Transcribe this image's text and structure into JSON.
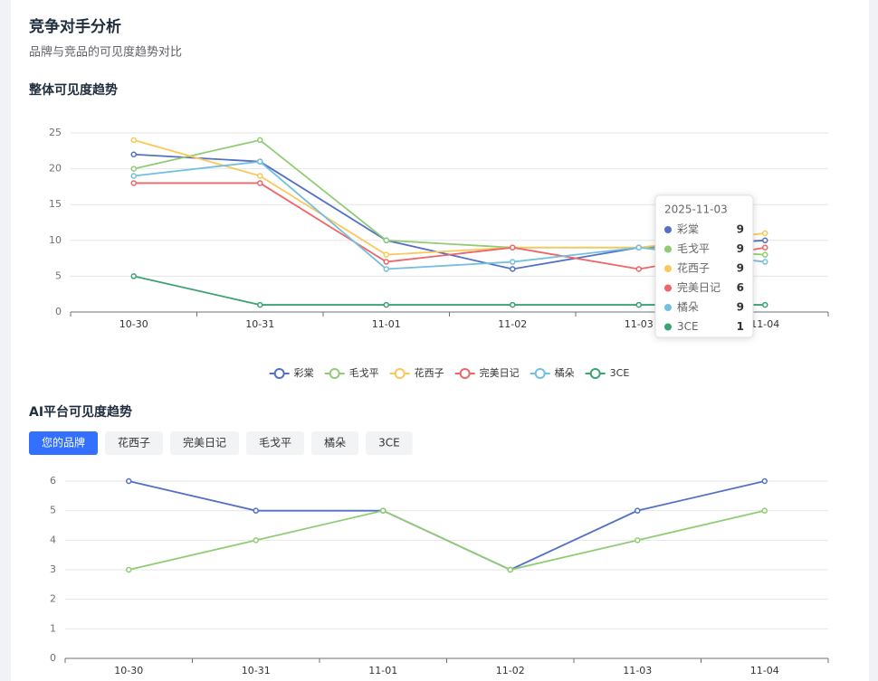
{
  "header": {
    "title": "竞争对手分析",
    "subtitle": "品牌与竞品的可见度趋势对比"
  },
  "chart_data": [
    {
      "type": "line",
      "title": "整体可见度趋势",
      "categories": [
        "10-30",
        "10-31",
        "11-01",
        "11-02",
        "11-03",
        "11-04"
      ],
      "series": [
        {
          "name": "彩棠",
          "color": "#5470c6",
          "values": [
            22,
            21,
            10,
            6,
            9,
            10
          ]
        },
        {
          "name": "毛戈平",
          "color": "#91cc75",
          "values": [
            20,
            24,
            10,
            9,
            9,
            8
          ]
        },
        {
          "name": "花西子",
          "color": "#fac858",
          "values": [
            24,
            19,
            8,
            9,
            9,
            11
          ]
        },
        {
          "name": "完美日记",
          "color": "#ee6666",
          "values": [
            18,
            18,
            7,
            9,
            6,
            9
          ]
        },
        {
          "name": "橘朵",
          "color": "#73c0de",
          "values": [
            19,
            21,
            6,
            7,
            9,
            7
          ]
        },
        {
          "name": "3CE",
          "color": "#3ba272",
          "values": [
            5,
            1,
            1,
            1,
            1,
            1
          ]
        }
      ],
      "ylim": [
        0,
        25
      ],
      "yticks": [
        0,
        5,
        10,
        15,
        20,
        25
      ],
      "grid": true,
      "legend": "bottom",
      "tooltip": {
        "title": "2025-11-03"
      }
    },
    {
      "type": "line",
      "title": "AI平台可见度趋势",
      "tabs": {
        "items": [
          "您的品牌",
          "花西子",
          "完美日记",
          "毛戈平",
          "橘朵",
          "3CE"
        ],
        "active": 0
      },
      "categories": [
        "10-30",
        "10-31",
        "11-01",
        "11-02",
        "11-03",
        "11-04"
      ],
      "series": [
        {
          "color": "#5470c6",
          "values": [
            6,
            5,
            5,
            3,
            5,
            6
          ]
        },
        {
          "color": "#91cc75",
          "values": [
            3,
            4,
            5,
            3,
            4,
            5
          ]
        }
      ],
      "ylim": [
        0,
        6
      ],
      "yticks": [
        0,
        1,
        2,
        3,
        4,
        5,
        6
      ],
      "grid": true
    }
  ]
}
